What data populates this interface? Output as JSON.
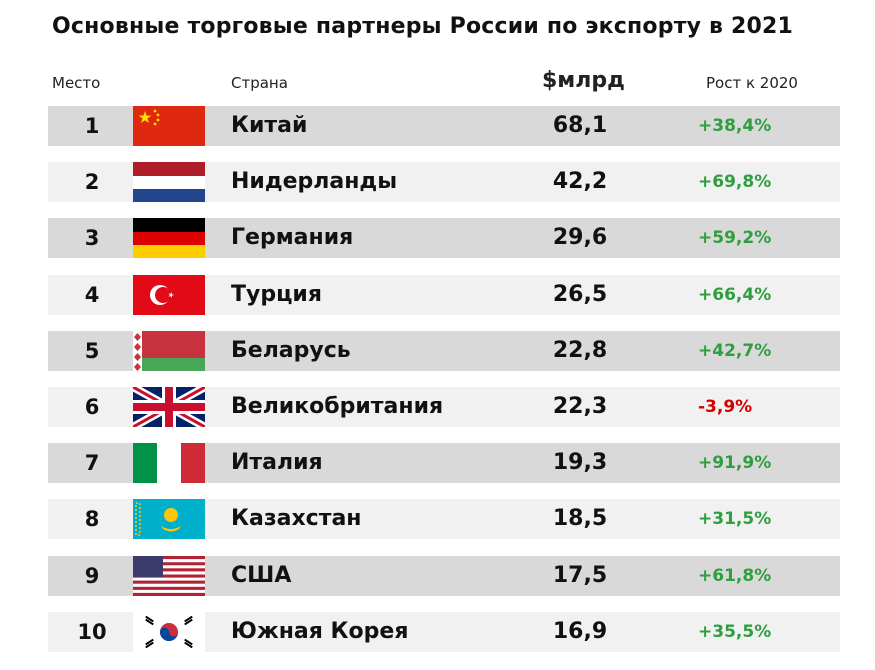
{
  "title": "Основные торговые партнеры России по экспорту в 2021",
  "headers": {
    "rank": "Место",
    "country": "Страна",
    "value": "$млрд",
    "growth": "Рост к 2020"
  },
  "colors": {
    "positive": "#2e9e3e",
    "negative": "#d40000",
    "row_dark": "#d9d9d9",
    "row_light": "#f1f1f1"
  },
  "rows": [
    {
      "rank": "1",
      "country": "Китай",
      "value": "68,1",
      "growth": "+38,4%",
      "flag": "china-flag-icon"
    },
    {
      "rank": "2",
      "country": "Нидерланды",
      "value": "42,2",
      "growth": "+69,8%",
      "flag": "netherlands-flag-icon"
    },
    {
      "rank": "3",
      "country": "Германия",
      "value": "29,6",
      "growth": "+59,2%",
      "flag": "germany-flag-icon"
    },
    {
      "rank": "4",
      "country": "Турция",
      "value": "26,5",
      "growth": "+66,4%",
      "flag": "turkey-flag-icon"
    },
    {
      "rank": "5",
      "country": "Беларусь",
      "value": "22,8",
      "growth": "+42,7%",
      "flag": "belarus-flag-icon"
    },
    {
      "rank": "6",
      "country": "Великобритания",
      "value": "22,3",
      "growth": "-3,9%",
      "flag": "uk-flag-icon"
    },
    {
      "rank": "7",
      "country": "Италия",
      "value": "19,3",
      "growth": "+91,9%",
      "flag": "italy-flag-icon"
    },
    {
      "rank": "8",
      "country": "Казахстан",
      "value": "18,5",
      "growth": "+31,5%",
      "flag": "kazakhstan-flag-icon"
    },
    {
      "rank": "9",
      "country": "США",
      "value": "17,5",
      "growth": "+61,8%",
      "flag": "usa-flag-icon"
    },
    {
      "rank": "10",
      "country": "Южная Корея",
      "value": "16,9",
      "growth": "+35,5%",
      "flag": "south-korea-flag-icon"
    }
  ]
}
